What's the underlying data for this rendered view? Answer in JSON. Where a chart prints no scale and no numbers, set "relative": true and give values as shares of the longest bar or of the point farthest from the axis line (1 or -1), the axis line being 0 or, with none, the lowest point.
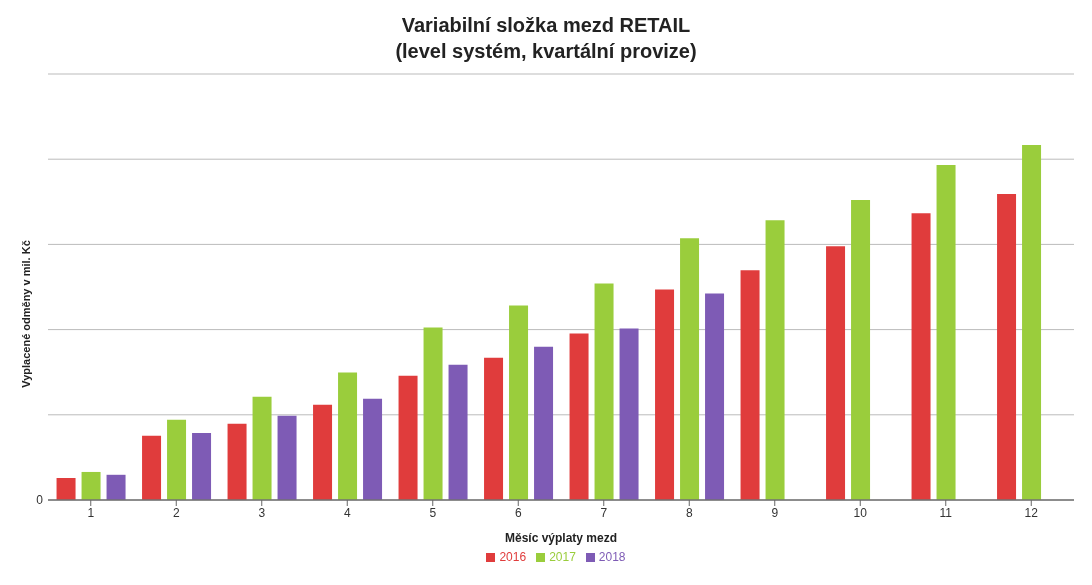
{
  "chart_data": {
    "type": "bar",
    "title": "Variabilní složka mezd RETAIL\n(level systém, kvartální provize)",
    "xlabel": "Měsíc výplaty mezd",
    "ylabel": "Vyplacené odměny v mil. Kč",
    "relative": true,
    "grid": "y",
    "legend": "bottom",
    "annotations": [
      "0"
    ],
    "categories": [
      "1",
      "2",
      "3",
      "4",
      "5",
      "6",
      "7",
      "8",
      "9",
      "10",
      "11",
      "12"
    ],
    "series": [
      {
        "name": "2016",
        "color": "#e03c3c",
        "values": [
          0.062,
          0.181,
          0.215,
          0.268,
          0.35,
          0.401,
          0.469,
          0.593,
          0.647,
          0.715,
          0.808,
          0.862
        ]
      },
      {
        "name": "2017",
        "color": "#9acd3c",
        "values": [
          0.079,
          0.226,
          0.291,
          0.359,
          0.486,
          0.548,
          0.61,
          0.737,
          0.788,
          0.845,
          0.944,
          1
        ]
      },
      {
        "name": "2018",
        "color": "#7e5bb5",
        "values": [
          0.071,
          0.189,
          0.237,
          0.285,
          0.381,
          0.432,
          0.483,
          0.582,
          null,
          null,
          null,
          null
        ]
      }
    ]
  }
}
